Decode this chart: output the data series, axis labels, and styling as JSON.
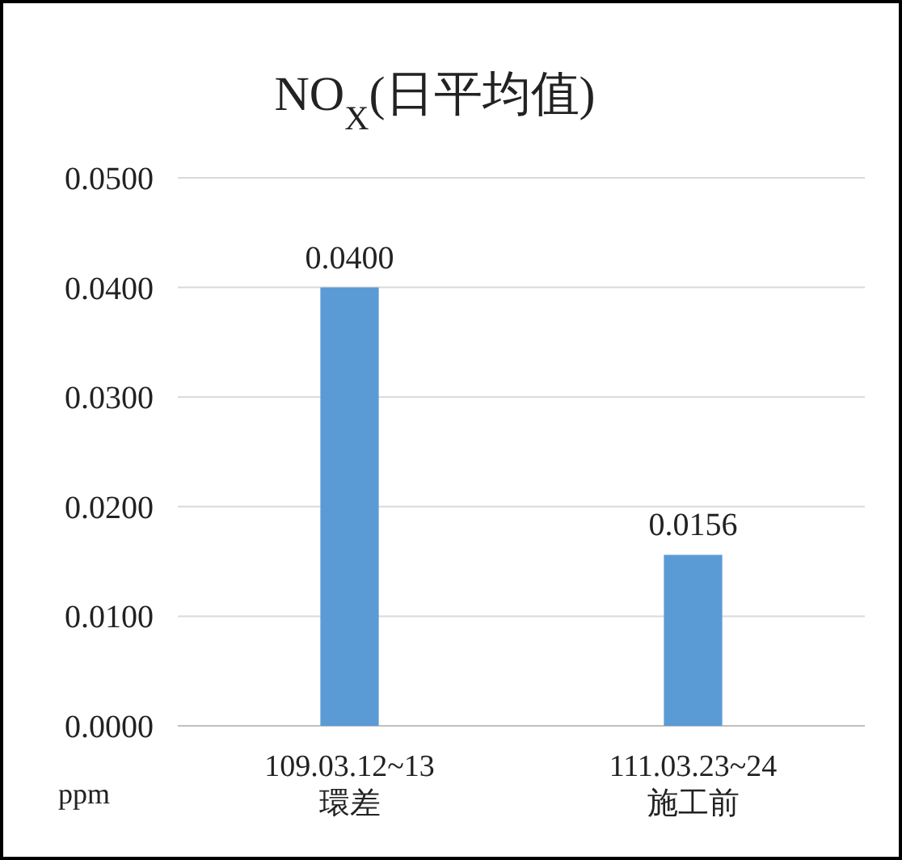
{
  "chart_data": {
    "type": "bar",
    "title": "NO$_{X}$(日平均值)",
    "ylabel": "ppm",
    "categories": [
      "109.03.12~13\n環差",
      "111.03.23~24\n施工前"
    ],
    "values": [
      0.04,
      0.0156
    ],
    "color": "#5b9bd5",
    "value_labels": [
      "0.0400",
      "0.0156"
    ],
    "ylim": [
      0,
      0.05
    ],
    "yticks": [
      {
        "value": 0,
        "label": "0.0000"
      },
      {
        "value": 0.01,
        "label": "0.0100"
      },
      {
        "value": 0.02,
        "label": "0.0200"
      },
      {
        "value": 0.03,
        "label": "0.0300"
      },
      {
        "value": 0.04,
        "label": "0.0400"
      },
      {
        "value": 0.05,
        "label": "0.0500"
      }
    ],
    "grid": "y"
  }
}
